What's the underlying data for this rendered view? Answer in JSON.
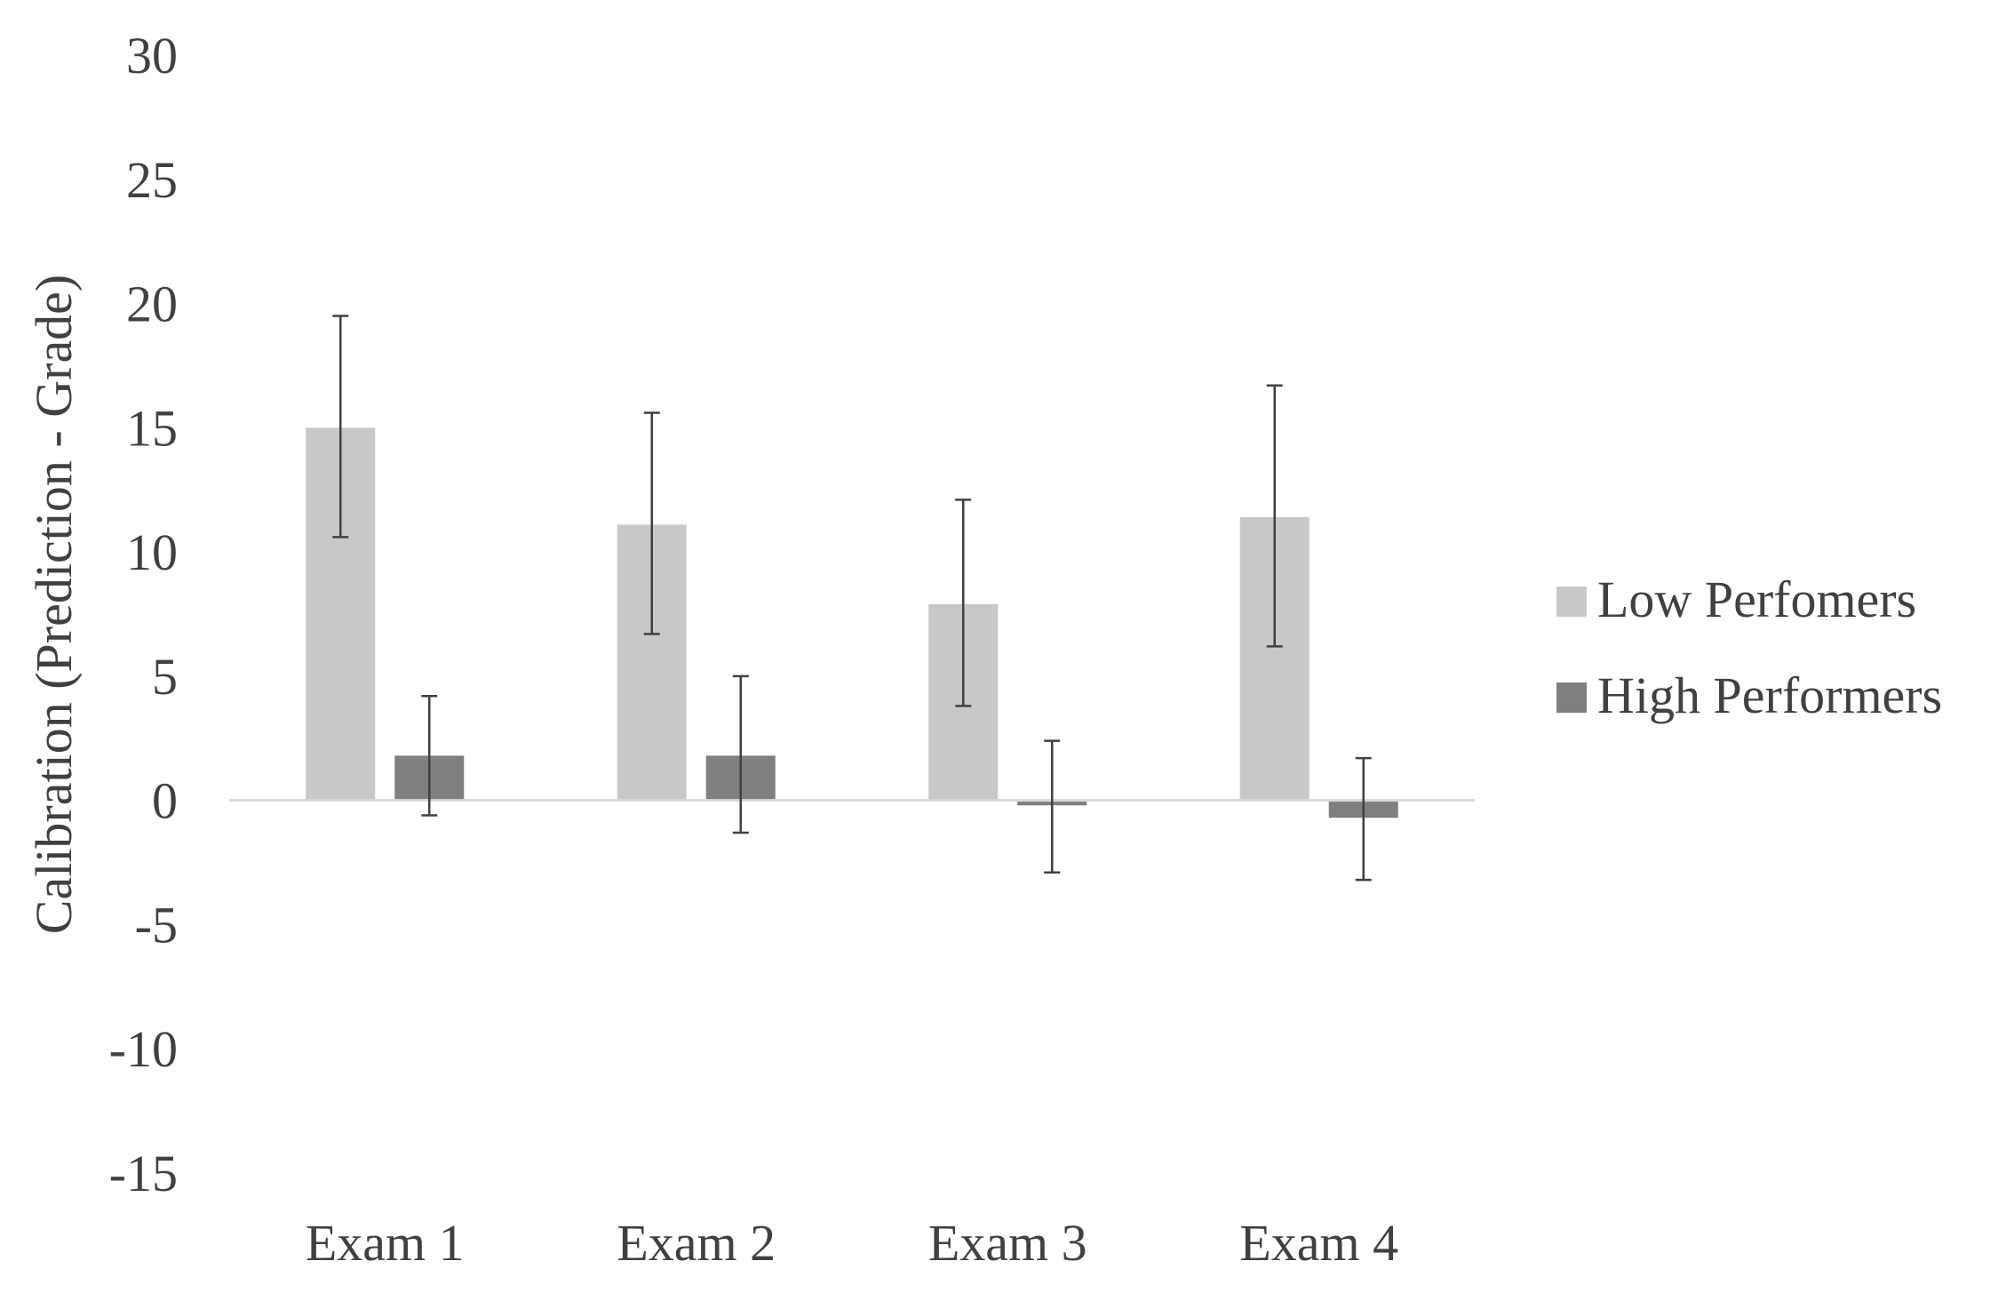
{
  "chart_data": {
    "type": "bar",
    "title": "",
    "xlabel": "",
    "ylabel": "Calibration (Prediction - Grade)",
    "ylim": [
      -15,
      30
    ],
    "yticks": [
      30,
      25,
      20,
      15,
      10,
      5,
      0,
      -5,
      -10,
      -15
    ],
    "grid": false,
    "legend_position": "right",
    "categories": [
      "Exam 1",
      "Exam 2",
      "Exam 3",
      "Exam 4"
    ],
    "series": [
      {
        "name": "Low Perfomers",
        "color": "#c8c8c8",
        "values": [
          15.0,
          11.1,
          7.9,
          11.4
        ],
        "error_low": [
          10.6,
          6.7,
          3.8,
          6.2
        ],
        "error_high": [
          19.5,
          15.6,
          12.1,
          16.7
        ]
      },
      {
        "name": "High Performers",
        "color": "#7f7f7f",
        "values": [
          1.8,
          1.8,
          -0.2,
          -0.7
        ],
        "error_low": [
          -0.6,
          -1.3,
          -2.9,
          -3.2
        ],
        "error_high": [
          4.2,
          5.0,
          2.4,
          1.7
        ]
      }
    ]
  }
}
